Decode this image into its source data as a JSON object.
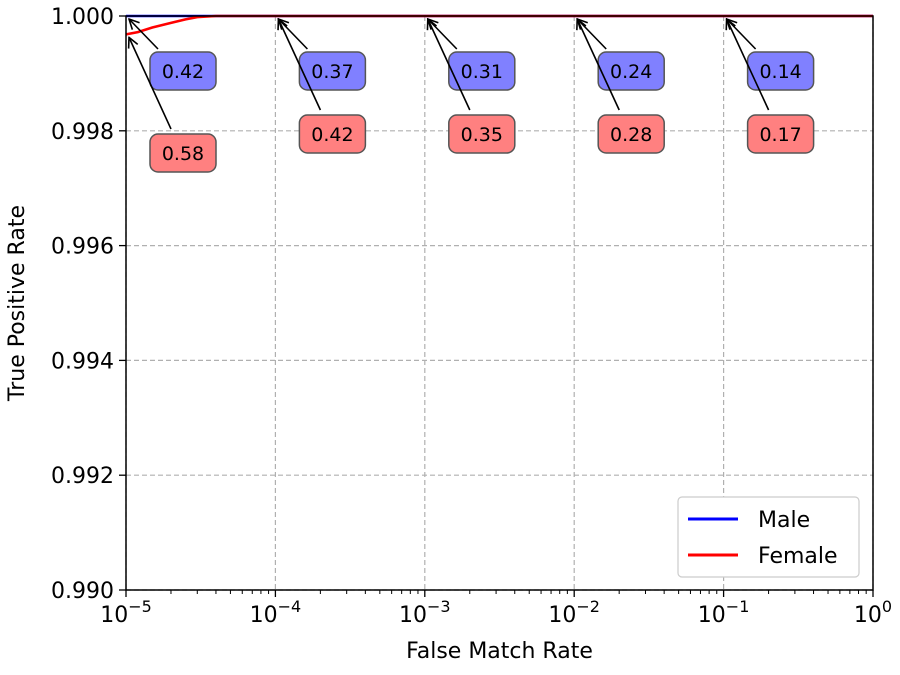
{
  "chart_data": {
    "type": "line",
    "title": "",
    "xlabel": "False Match Rate",
    "ylabel": "True Positive Rate",
    "xscale": "log",
    "xlim": [
      1e-05,
      1
    ],
    "ylim": [
      0.99,
      1.0
    ],
    "x_ticks": [
      {
        "base": "10",
        "exp": "−5"
      },
      {
        "base": "10",
        "exp": "−4"
      },
      {
        "base": "10",
        "exp": "−3"
      },
      {
        "base": "10",
        "exp": "−2"
      },
      {
        "base": "10",
        "exp": "−1"
      },
      {
        "base": "10",
        "exp": "0"
      }
    ],
    "y_ticks": [
      "0.990",
      "0.992",
      "0.994",
      "0.996",
      "0.998",
      "1.000"
    ],
    "grid": true,
    "legend_position": "lower-right",
    "series": [
      {
        "name": "Male",
        "color": "#0000ff",
        "x": [
          1e-05,
          2e-05,
          3e-05,
          4e-05,
          0.0001,
          0.001,
          0.01,
          0.1,
          1
        ],
        "y": [
          1.0,
          1.0,
          1.0,
          1.0,
          1.0,
          1.0,
          1.0,
          1.0,
          1.0
        ]
      },
      {
        "name": "Female",
        "color": "#ff0000",
        "x": [
          1e-05,
          1.2e-05,
          1.5e-05,
          2e-05,
          2.5e-05,
          3e-05,
          4e-05,
          0.0001,
          0.001,
          0.01,
          0.1,
          1
        ],
        "y": [
          0.99968,
          0.99972,
          0.9998,
          0.99988,
          0.99994,
          0.99998,
          1.0,
          1.0,
          1.0,
          1.0,
          1.0,
          1.0
        ]
      }
    ],
    "annotations": [
      {
        "series": "Male",
        "text": "0.42",
        "x": 1e-05,
        "y": 1.0,
        "color": "#8080ff"
      },
      {
        "series": "Male",
        "text": "0.37",
        "x": 0.0001,
        "y": 1.0,
        "color": "#8080ff"
      },
      {
        "series": "Male",
        "text": "0.31",
        "x": 0.001,
        "y": 1.0,
        "color": "#8080ff"
      },
      {
        "series": "Male",
        "text": "0.24",
        "x": 0.01,
        "y": 1.0,
        "color": "#8080ff"
      },
      {
        "series": "Male",
        "text": "0.14",
        "x": 0.1,
        "y": 1.0,
        "color": "#8080ff"
      },
      {
        "series": "Female",
        "text": "0.58",
        "x": 1e-05,
        "y": 0.99968,
        "color": "#ff8080"
      },
      {
        "series": "Female",
        "text": "0.42",
        "x": 0.0001,
        "y": 1.0,
        "color": "#ff8080"
      },
      {
        "series": "Female",
        "text": "0.35",
        "x": 0.001,
        "y": 1.0,
        "color": "#ff8080"
      },
      {
        "series": "Female",
        "text": "0.28",
        "x": 0.01,
        "y": 1.0,
        "color": "#ff8080"
      },
      {
        "series": "Female",
        "text": "0.17",
        "x": 0.1,
        "y": 1.0,
        "color": "#ff8080"
      }
    ]
  }
}
